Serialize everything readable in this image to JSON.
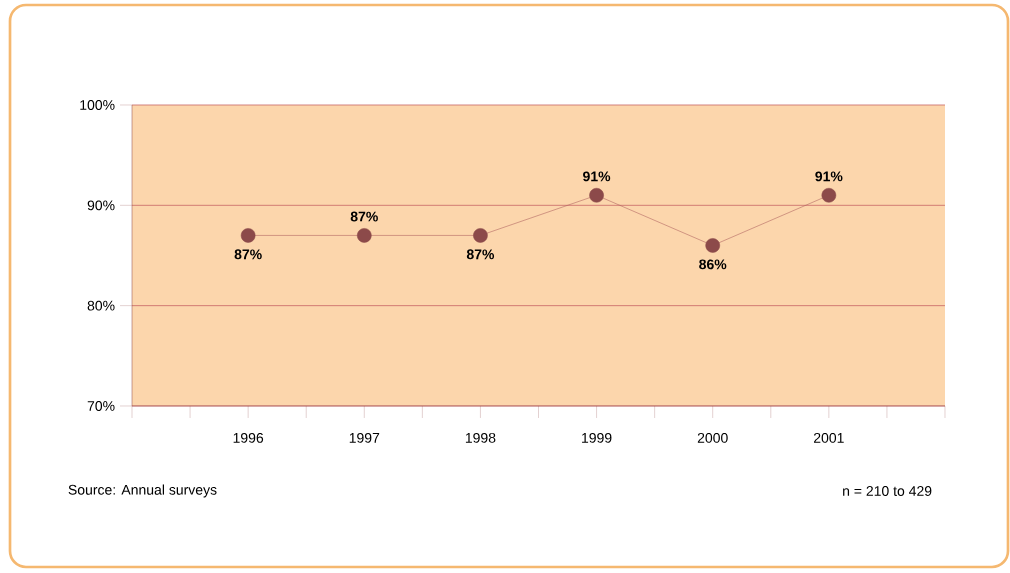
{
  "chart_data": {
    "type": "line",
    "categories": [
      "1996",
      "1997",
      "1998",
      "1999",
      "2000",
      "2001"
    ],
    "values": [
      87,
      87,
      87,
      91,
      86,
      91
    ],
    "value_labels": [
      "87%",
      "87%",
      "87%",
      "91%",
      "86%",
      "91%"
    ],
    "color": "#8c4a4a",
    "ylim": [
      70,
      100
    ],
    "yticks": [
      {
        "value": 70,
        "label": "70%"
      },
      {
        "value": 80,
        "label": "80%"
      },
      {
        "value": 90,
        "label": "90%"
      },
      {
        "value": 100,
        "label": "100%"
      }
    ],
    "grid": "y",
    "marker": "circle",
    "annotations": [
      "Source:  Annual surveys",
      "n = 210 to 429"
    ]
  }
}
